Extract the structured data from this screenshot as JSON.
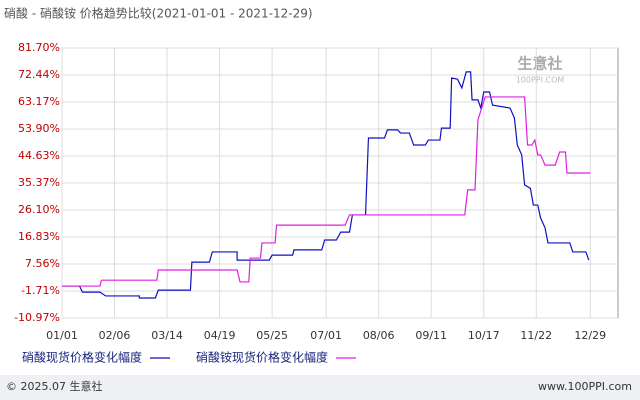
{
  "chart_data": {
    "type": "line",
    "title": "硝酸 - 硝酸铵 价格趋势比较(2021-01-01 - 2021-12-29)",
    "watermark": "生意社",
    "watermark_sub": "100PPI.COM",
    "footer_left": "© 2025.07 生意社",
    "footer_right": "www.100PPI.com",
    "xlim": [
      0,
      381
    ],
    "xticks": [
      {
        "value": 0,
        "label": "01/01"
      },
      {
        "value": 36,
        "label": "02/06"
      },
      {
        "value": 72,
        "label": "03/14"
      },
      {
        "value": 108,
        "label": "04/19"
      },
      {
        "value": 144,
        "label": "05/25"
      },
      {
        "value": 181,
        "label": "07/01"
      },
      {
        "value": 217,
        "label": "08/06"
      },
      {
        "value": 253,
        "label": "09/11"
      },
      {
        "value": 289,
        "label": "10/17"
      },
      {
        "value": 325,
        "label": "11/22"
      },
      {
        "value": 362,
        "label": "12/29"
      }
    ],
    "ylim": [
      -10.97,
      81.7
    ],
    "yticks": [
      {
        "value": 81.7,
        "label": "81.70%"
      },
      {
        "value": 72.44,
        "label": "72.44%"
      },
      {
        "value": 63.17,
        "label": "63.17%"
      },
      {
        "value": 53.9,
        "label": "53.90%"
      },
      {
        "value": 44.63,
        "label": "44.63%"
      },
      {
        "value": 35.37,
        "label": "35.37%"
      },
      {
        "value": 26.1,
        "label": "26.10%"
      },
      {
        "value": 16.83,
        "label": "16.83%"
      },
      {
        "value": 7.56,
        "label": "7.56%"
      },
      {
        "value": -1.71,
        "label": "-1.71%"
      },
      {
        "value": -10.97,
        "label": "-10.97%"
      }
    ],
    "grid": true,
    "series": [
      {
        "name": "硝酸现货价格变化幅度",
        "color": "#1010c0",
        "x": [
          0,
          12,
          14,
          26,
          30,
          53,
          53,
          64,
          66,
          88,
          89,
          101,
          103,
          120,
          120,
          142,
          144,
          158,
          159,
          178,
          180,
          188,
          191,
          197,
          199,
          208,
          210,
          221,
          223,
          230,
          232,
          238,
          241,
          249,
          251,
          259,
          260,
          266,
          267,
          271,
          274,
          277,
          280,
          281,
          285,
          287,
          289,
          293,
          295,
          307,
          310,
          312,
          315,
          317,
          321,
          323,
          326,
          328,
          331,
          333,
          348,
          350,
          359,
          361
        ],
        "values": [
          0,
          0,
          -2.1,
          -2.1,
          -3.4,
          -3.4,
          -4.1,
          -4.1,
          -1.4,
          -1.4,
          8.2,
          8.2,
          11.7,
          11.7,
          8.9,
          8.9,
          10.6,
          10.6,
          12.4,
          12.4,
          15.8,
          15.8,
          18.5,
          18.5,
          24.4,
          24.4,
          50.8,
          50.8,
          53.6,
          53.6,
          52.5,
          52.5,
          48.4,
          48.4,
          50.1,
          50.1,
          54.2,
          54.2,
          71.4,
          71.0,
          68.0,
          73.5,
          73.5,
          63.9,
          63.9,
          61.1,
          66.6,
          66.6,
          62.1,
          61.1,
          57.7,
          48.4,
          45.0,
          34.7,
          33.5,
          27.8,
          27.8,
          23.3,
          20.0,
          14.8,
          14.8,
          11.7,
          11.7,
          8.9
        ]
      },
      {
        "name": "硝酸铵现货价格变化幅度",
        "color": "#e020e0",
        "x": [
          0,
          26,
          27,
          65,
          66,
          120,
          122,
          128,
          129,
          136,
          137,
          146,
          147,
          194,
          197,
          276,
          278,
          283,
          285,
          290,
          317,
          319,
          322,
          324,
          326,
          328,
          331,
          338,
          341,
          345,
          346,
          362
        ],
        "values": [
          0,
          0,
          2.0,
          2.0,
          5.5,
          5.5,
          1.4,
          1.4,
          9.6,
          9.6,
          14.8,
          14.8,
          20.9,
          20.9,
          24.4,
          24.4,
          33.0,
          33.0,
          57.0,
          64.9,
          64.9,
          48.4,
          48.4,
          50.1,
          45.0,
          45.0,
          41.5,
          41.5,
          46.0,
          46.0,
          38.8,
          38.8
        ]
      }
    ]
  }
}
